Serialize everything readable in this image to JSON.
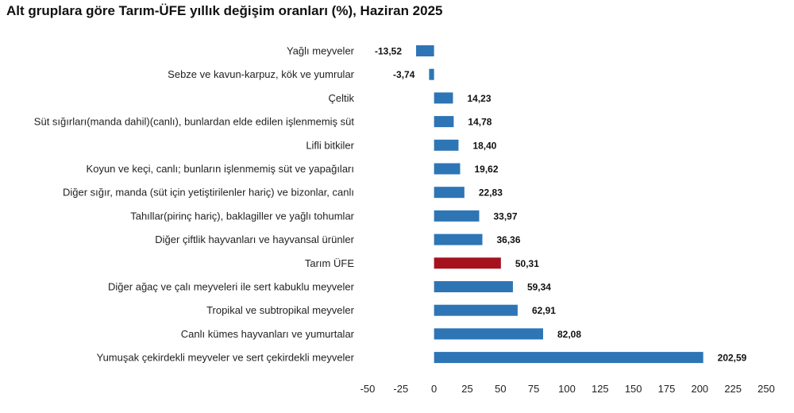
{
  "chart_data": {
    "type": "bar",
    "orientation": "horizontal",
    "title": "Alt gruplara göre Tarım-ÜFE yıllık değişim oranları (%), Haziran 2025",
    "categories": [
      "Yağlı meyveler",
      "Sebze ve kavun-karpuz, kök ve yumrular",
      "Çeltik",
      "Süt sığırları(manda dahil)(canlı), bunlardan elde edilen işlenmemiş süt",
      "Lifli bitkiler",
      "Koyun ve keçi, canlı; bunların işlenmemiş süt ve yapağıları",
      "Diğer sığır, manda (süt için yetiştirilenler hariç) ve bizonlar, canlı",
      "Tahıllar(pirinç hariç), baklagiller ve yağlı tohumlar",
      "Diğer çiftlik hayvanları ve hayvansal ürünler",
      "Tarım ÜFE",
      "Diğer ağaç ve çalı meyveleri ile sert kabuklu meyveler",
      "Tropikal ve subtropikal meyveler",
      "Canlı kümes hayvanları ve yumurtalar",
      "Yumuşak çekirdekli meyveler ve sert çekirdekli meyveler"
    ],
    "values": [
      -13.52,
      -3.74,
      14.23,
      14.78,
      18.4,
      19.62,
      22.83,
      33.97,
      36.36,
      50.31,
      59.34,
      62.91,
      82.08,
      202.59
    ],
    "value_labels": [
      "-13,52",
      "-3,74",
      "14,23",
      "14,78",
      "18,40",
      "19,62",
      "22,83",
      "33,97",
      "36,36",
      "50,31",
      "59,34",
      "62,91",
      "82,08",
      "202,59"
    ],
    "highlight_index": 9,
    "colors": {
      "default": "#2E75B6",
      "highlight": "#A5121E"
    },
    "xlim": [
      -50,
      250
    ],
    "xticks": [
      -50,
      -25,
      0,
      25,
      50,
      75,
      100,
      125,
      150,
      175,
      200,
      225,
      250
    ],
    "xtick_labels": [
      "-50",
      "-25",
      "0",
      "25",
      "50",
      "75",
      "100",
      "125",
      "150",
      "175",
      "200",
      "225",
      "250"
    ],
    "grid": false,
    "xlabel": "",
    "ylabel": ""
  }
}
